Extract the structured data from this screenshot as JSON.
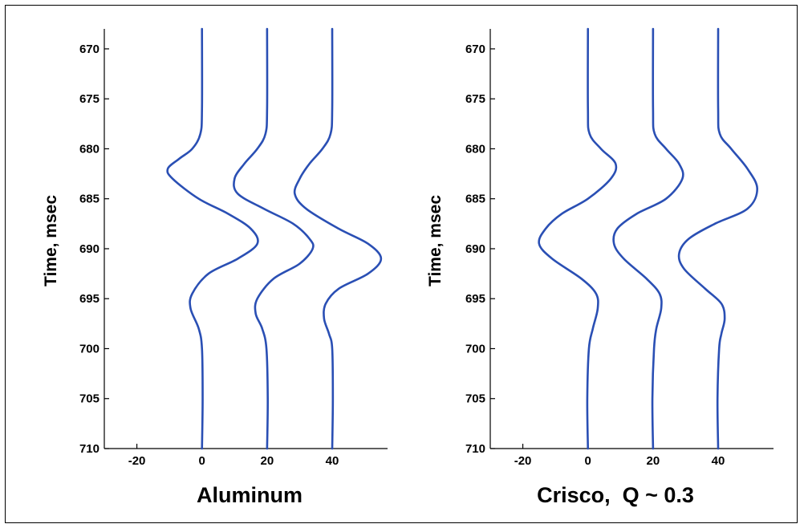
{
  "chart_data": [
    {
      "type": "line",
      "title": "Aluminum",
      "ylabel": "Time, msec",
      "xlabel": "",
      "xlim": [
        -30,
        57
      ],
      "ylim": [
        710,
        668
      ],
      "y_reversed": true,
      "xticks": [
        "-20",
        "0",
        "20",
        "40"
      ],
      "xtick_values": [
        -20,
        0,
        20,
        40
      ],
      "yticks": [
        "670",
        "675",
        "680",
        "685",
        "690",
        "695",
        "700",
        "705",
        "710"
      ],
      "ytick_values": [
        670,
        675,
        680,
        685,
        690,
        695,
        700,
        705,
        710
      ],
      "color": "#2a4fb4",
      "series": [
        {
          "offset": 0,
          "points": [
            [
              0,
              668
            ],
            [
              0,
              676
            ],
            [
              -0.5,
              678.5
            ],
            [
              -3,
              680
            ],
            [
              -7,
              681
            ],
            [
              -10.5,
              682
            ],
            [
              -9,
              683
            ],
            [
              -1,
              685
            ],
            [
              8,
              686.5
            ],
            [
              15,
              688
            ],
            [
              17,
              689.5
            ],
            [
              11,
              691
            ],
            [
              2,
              692.5
            ],
            [
              -3,
              694.5
            ],
            [
              -3.5,
              696
            ],
            [
              -1,
              698
            ],
            [
              0,
              700
            ],
            [
              0.2,
              705
            ],
            [
              0,
              710
            ]
          ]
        },
        {
          "offset": 20,
          "points": [
            [
              20,
              668
            ],
            [
              20,
              676
            ],
            [
              19.5,
              678.5
            ],
            [
              17,
              680
            ],
            [
              13,
              681.5
            ],
            [
              10,
              683
            ],
            [
              11,
              684.5
            ],
            [
              19,
              686
            ],
            [
              28,
              687.5
            ],
            [
              33,
              689
            ],
            [
              34,
              690
            ],
            [
              30,
              691.5
            ],
            [
              22,
              693
            ],
            [
              17,
              695
            ],
            [
              16.5,
              696.5
            ],
            [
              18.5,
              698
            ],
            [
              19.8,
              700
            ],
            [
              20.2,
              705
            ],
            [
              20,
              710
            ]
          ]
        },
        {
          "offset": 40,
          "points": [
            [
              40,
              668
            ],
            [
              40,
              676
            ],
            [
              39.5,
              678.5
            ],
            [
              37,
              680
            ],
            [
              33,
              681.5
            ],
            [
              30,
              683
            ],
            [
              28.5,
              684.5
            ],
            [
              32,
              686
            ],
            [
              42,
              688
            ],
            [
              51,
              689.5
            ],
            [
              55,
              691
            ],
            [
              51,
              692.5
            ],
            [
              42,
              694
            ],
            [
              38,
              695.5
            ],
            [
              37.5,
              697
            ],
            [
              39,
              698.5
            ],
            [
              40,
              700
            ],
            [
              40.2,
              705
            ],
            [
              40,
              710
            ]
          ]
        }
      ]
    },
    {
      "type": "line",
      "title": "Crisco,  Q ~ 0.3",
      "ylabel": "Time, msec",
      "xlabel": "",
      "xlim": [
        -30,
        57
      ],
      "ylim": [
        710,
        668
      ],
      "y_reversed": true,
      "xticks": [
        "-20",
        "0",
        "20",
        "40"
      ],
      "xtick_values": [
        -20,
        0,
        20,
        40
      ],
      "yticks": [
        "670",
        "675",
        "680",
        "685",
        "690",
        "695",
        "700",
        "705",
        "710"
      ],
      "ytick_values": [
        670,
        675,
        680,
        685,
        690,
        695,
        700,
        705,
        710
      ],
      "color": "#2a4fb4",
      "series": [
        {
          "offset": 0,
          "points": [
            [
              0,
              668
            ],
            [
              0,
              676
            ],
            [
              0.5,
              678.5
            ],
            [
              4,
              680
            ],
            [
              8.5,
              681.5
            ],
            [
              7,
              683
            ],
            [
              0,
              685
            ],
            [
              -8,
              686.5
            ],
            [
              -13,
              688
            ],
            [
              -15,
              689.5
            ],
            [
              -11,
              691
            ],
            [
              -2,
              693
            ],
            [
              2.5,
              694.5
            ],
            [
              3,
              696
            ],
            [
              1.5,
              698
            ],
            [
              0.3,
              700
            ],
            [
              -0.2,
              705
            ],
            [
              0,
              710
            ]
          ]
        },
        {
          "offset": 20,
          "points": [
            [
              20,
              668
            ],
            [
              20,
              676
            ],
            [
              20.5,
              678.5
            ],
            [
              24,
              680
            ],
            [
              28,
              681.5
            ],
            [
              29,
              683
            ],
            [
              24,
              685
            ],
            [
              15,
              686.5
            ],
            [
              9,
              688
            ],
            [
              8,
              689.5
            ],
            [
              11,
              691
            ],
            [
              18,
              693
            ],
            [
              22,
              694.5
            ],
            [
              22.5,
              696
            ],
            [
              21,
              698
            ],
            [
              20.3,
              700
            ],
            [
              19.8,
              705
            ],
            [
              20,
              710
            ]
          ]
        },
        {
          "offset": 40,
          "points": [
            [
              40,
              668
            ],
            [
              40,
              676
            ],
            [
              40.5,
              678.5
            ],
            [
              44,
              680
            ],
            [
              49,
              682
            ],
            [
              52,
              684
            ],
            [
              49,
              686
            ],
            [
              39,
              687.5
            ],
            [
              31,
              689
            ],
            [
              28,
              690.5
            ],
            [
              29.5,
              692
            ],
            [
              36,
              694
            ],
            [
              41,
              695.5
            ],
            [
              42,
              697
            ],
            [
              41,
              698.5
            ],
            [
              40.3,
              700
            ],
            [
              39.8,
              705
            ],
            [
              40,
              710
            ]
          ]
        }
      ]
    }
  ]
}
